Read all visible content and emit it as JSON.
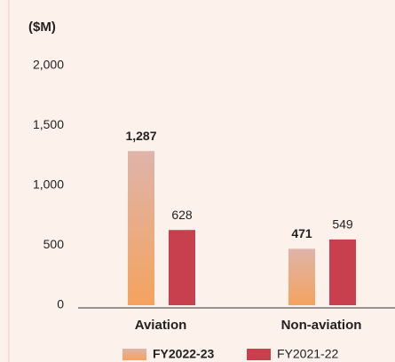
{
  "chart_data": {
    "type": "bar",
    "y_label": "($M)",
    "categories": [
      "Aviation",
      "Non-aviation"
    ],
    "series": [
      {
        "name": "FY2022-23",
        "color": "#f4a35e",
        "values": [
          1287,
          471
        ],
        "value_labels": [
          "1,287",
          "471"
        ]
      },
      {
        "name": "FY2021-22",
        "color": "#c8404d",
        "values": [
          628,
          549
        ]
      }
    ],
    "ylim": [
      0,
      2000
    ],
    "yticks": [
      0,
      500,
      {
        "value": 1000,
        "label": "1,000"
      },
      {
        "value": 1500,
        "label": "1,500"
      },
      {
        "value": 2000,
        "label": "2,000"
      }
    ],
    "grid": false,
    "legend": "bottom"
  }
}
